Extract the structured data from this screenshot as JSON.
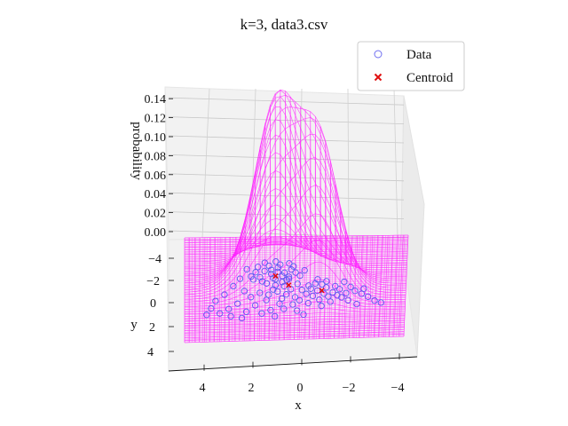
{
  "chart_data": {
    "type": "scatter",
    "title": "k=3, data3.csv",
    "xlabel": "x",
    "ylabel": "y",
    "zlabel": "probability",
    "xlim": [
      -5,
      5
    ],
    "ylim": [
      -5,
      5
    ],
    "zlim": [
      0,
      0.14
    ],
    "x_ticks": [
      "4",
      "2",
      "0",
      "−2",
      "−4"
    ],
    "y_ticks": [
      "−4",
      "−2",
      "0",
      "2",
      "4"
    ],
    "z_ticks": [
      "0.00",
      "0.02",
      "0.04",
      "0.06",
      "0.08",
      "0.10",
      "0.12",
      "0.14"
    ],
    "legend": {
      "position": "top-right",
      "entries": [
        {
          "label": "Data",
          "marker": "open-circle",
          "color": "#6f6ff0"
        },
        {
          "label": "Centroid",
          "marker": "x",
          "color": "#e01010"
        }
      ]
    },
    "surface": {
      "type": "wireframe",
      "color": "#ff33ff"
    },
    "centroids": [
      {
        "x": 0.9,
        "y": -1.2
      },
      {
        "x": 0.3,
        "y": -0.3
      },
      {
        "x": -1.2,
        "y": 0.3
      }
    ],
    "data_points": [
      [
        0.2,
        -1.8
      ],
      [
        0.5,
        -1.5
      ],
      [
        0.8,
        -2.0
      ],
      [
        1.1,
        -1.4
      ],
      [
        0.6,
        -1.2
      ],
      [
        1.4,
        -1.7
      ],
      [
        0.9,
        -0.9
      ],
      [
        1.6,
        -1.1
      ],
      [
        0.3,
        -1.1
      ],
      [
        1.2,
        -2.2
      ],
      [
        0.0,
        -1.5
      ],
      [
        1.8,
        -1.6
      ],
      [
        0.7,
        -2.3
      ],
      [
        1.0,
        -1.0
      ],
      [
        0.4,
        -0.8
      ],
      [
        1.5,
        -0.7
      ],
      [
        2.0,
        -1.2
      ],
      [
        0.1,
        -2.1
      ],
      [
        1.3,
        -0.5
      ],
      [
        0.8,
        -1.6
      ],
      [
        -0.2,
        -1.2
      ],
      [
        2.2,
        -1.9
      ],
      [
        0.6,
        -0.6
      ],
      [
        1.7,
        -2.1
      ],
      [
        1.1,
        -1.8
      ],
      [
        0.9,
        -2.6
      ],
      [
        0.3,
        -2.4
      ],
      [
        1.9,
        -0.9
      ],
      [
        -0.4,
        -1.7
      ],
      [
        1.4,
        -2.5
      ],
      [
        0.5,
        -0.2
      ],
      [
        0.2,
        0.1
      ],
      [
        -0.1,
        -0.4
      ],
      [
        0.8,
        0.3
      ],
      [
        0.4,
        0.6
      ],
      [
        -0.3,
        0.2
      ],
      [
        0.0,
        0.9
      ],
      [
        1.0,
        0.1
      ],
      [
        0.6,
        1.0
      ],
      [
        -0.5,
        0.6
      ],
      [
        0.3,
        -0.9
      ],
      [
        1.2,
        0.6
      ],
      [
        -0.2,
        1.2
      ],
      [
        0.7,
        1.5
      ],
      [
        0.1,
        1.6
      ],
      [
        -0.6,
        -0.2
      ],
      [
        0.9,
        -0.3
      ],
      [
        0.5,
        2.0
      ],
      [
        -0.1,
        2.2
      ],
      [
        1.3,
        1.1
      ],
      [
        -1.0,
        0.3
      ],
      [
        -1.4,
        0.0
      ],
      [
        -1.7,
        0.5
      ],
      [
        -0.8,
        0.8
      ],
      [
        -1.2,
        -0.3
      ],
      [
        -2.0,
        0.2
      ],
      [
        -1.5,
        0.9
      ],
      [
        -0.9,
        -0.4
      ],
      [
        -2.3,
        0.6
      ],
      [
        -1.1,
        1.2
      ],
      [
        -1.8,
        -0.1
      ],
      [
        -1.3,
        0.6
      ],
      [
        -2.5,
        0.0
      ],
      [
        -0.7,
        0.1
      ],
      [
        -1.6,
        1.4
      ],
      [
        -2.1,
        1.0
      ],
      [
        -1.0,
        -0.8
      ],
      [
        -2.7,
        0.4
      ],
      [
        -1.4,
        -0.6
      ],
      [
        -1.9,
        0.8
      ],
      [
        -3.0,
        0.7
      ],
      [
        -2.4,
        1.3
      ],
      [
        -3.3,
        1.0
      ],
      [
        -2.8,
        1.7
      ],
      [
        -3.6,
        1.4
      ],
      [
        -1.2,
        1.8
      ],
      [
        -2.2,
        -0.5
      ],
      [
        -3.1,
        0.2
      ],
      [
        -0.6,
        1.5
      ],
      [
        -3.9,
        1.6
      ],
      [
        2.5,
        -1.0
      ],
      [
        2.8,
        -0.3
      ],
      [
        3.2,
        0.5
      ],
      [
        2.3,
        0.2
      ],
      [
        3.6,
        1.1
      ],
      [
        2.0,
        0.8
      ],
      [
        1.6,
        0.4
      ],
      [
        2.6,
        1.4
      ],
      [
        3.0,
        1.9
      ],
      [
        1.8,
        1.6
      ],
      [
        2.2,
        2.2
      ],
      [
        3.8,
        1.8
      ],
      [
        1.1,
        2.1
      ],
      [
        2.9,
        2.6
      ],
      [
        4.0,
        2.4
      ],
      [
        0.9,
        2.7
      ],
      [
        1.5,
        2.4
      ],
      [
        -0.4,
        2.6
      ],
      [
        3.4,
        2.3
      ],
      [
        2.4,
        2.8
      ]
    ]
  }
}
